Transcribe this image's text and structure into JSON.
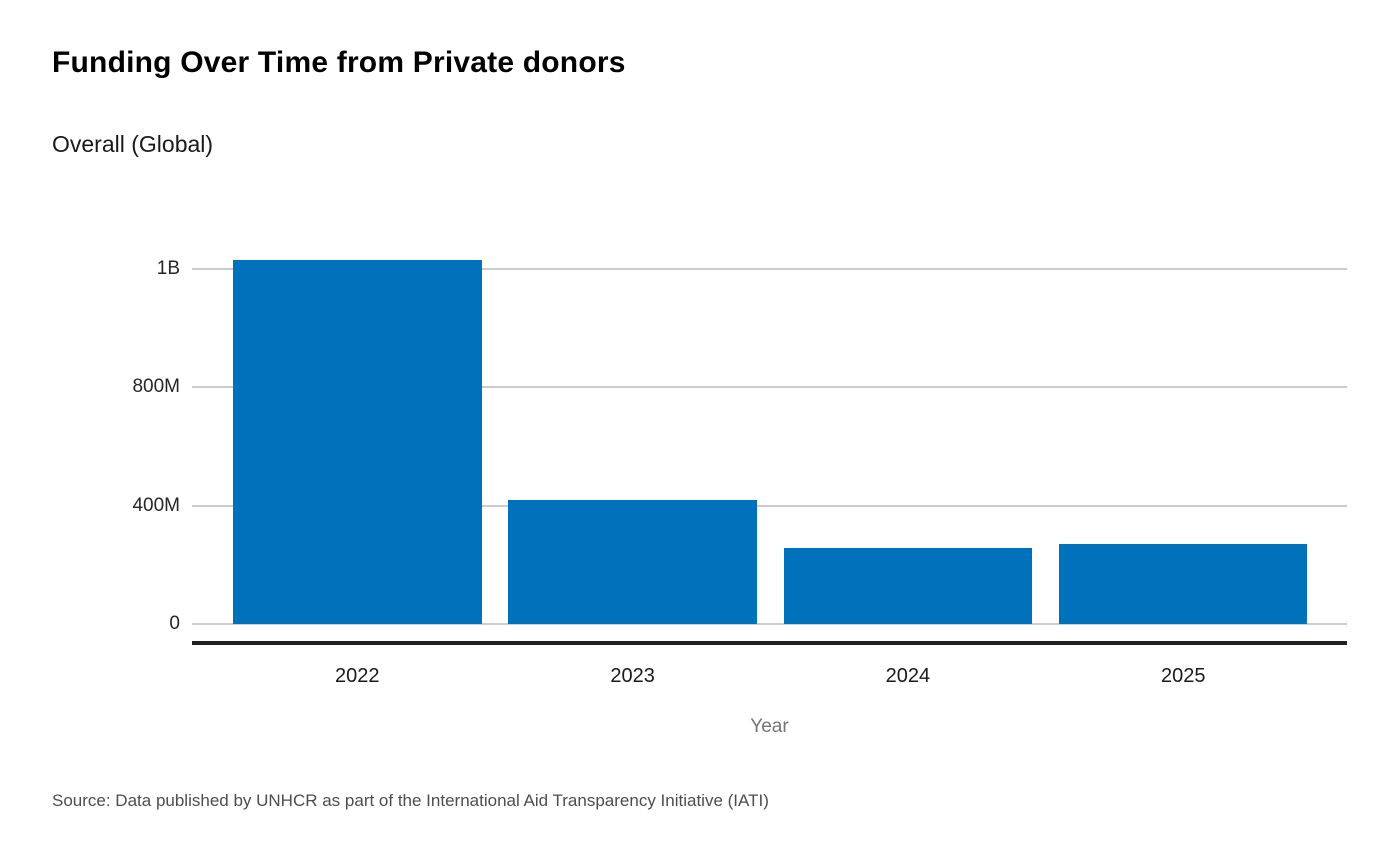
{
  "header": {
    "title": "Funding Over Time from Private donors",
    "subtitle": "Overall (Global)"
  },
  "chart_data": {
    "type": "bar",
    "title": "Funding Over Time from Private donors",
    "subtitle": "Overall (Global)",
    "categories": [
      "2022",
      "2023",
      "2024",
      "2025"
    ],
    "values": [
      1230000000,
      420000000,
      257000000,
      272000000
    ],
    "xlabel": "Year",
    "ylabel": "",
    "ylim": [
      0,
      1230000000
    ],
    "yticks": [
      {
        "value": 0,
        "label": "0"
      },
      {
        "value": 400000000,
        "label": "400M"
      },
      {
        "value": 800000000,
        "label": "800M"
      },
      {
        "value": 1200000000,
        "label": "1B"
      }
    ],
    "grid": "horizontal",
    "legend": "none",
    "bar_color": "#0072BC"
  },
  "footer": {
    "source": "Source: Data published by UNHCR as part of the International Aid Transparency Initiative (IATI)"
  },
  "colors": {
    "bar": "#0072BC",
    "gridline": "#cccccc",
    "axis_line": "#212121",
    "tick_label": "#262626",
    "x_axis_title": "#757575",
    "source_text": "#4d4d4d",
    "title": "#000000"
  }
}
